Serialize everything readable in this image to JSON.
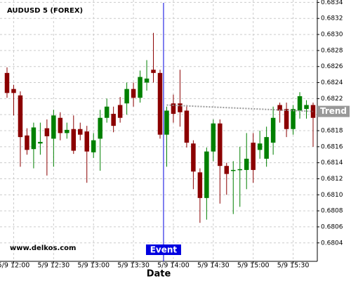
{
  "chart_data": {
    "type": "candlestick",
    "title": "AUDUSD 5 (FOREX)",
    "watermark": "www.delkos.com",
    "x_label": "Date",
    "categories": [
      null,
      "5/9 12:00",
      null,
      null,
      null,
      null,
      null,
      "5/9 12:30",
      null,
      null,
      null,
      null,
      null,
      "5/9 13:00",
      null,
      null,
      null,
      null,
      null,
      "5/9 13:30",
      null,
      null,
      null,
      null,
      null,
      "5/9 14:00",
      null,
      null,
      null,
      null,
      null,
      "5/9 14:30",
      null,
      null,
      null,
      null,
      null,
      "5/9 15:00",
      null,
      null,
      null,
      null,
      null,
      "5/9 15:30",
      null,
      null,
      null
    ],
    "open": [
      0.68252,
      0.68232,
      0.68224,
      0.68174,
      0.68157,
      0.68164,
      0.68183,
      0.6817,
      0.68196,
      0.68177,
      0.68182,
      0.68182,
      0.68179,
      0.68153,
      0.6817,
      0.68196,
      0.68201,
      0.68212,
      0.68214,
      0.68232,
      0.68221,
      0.6824,
      0.68256,
      0.68252,
      0.68175,
      0.68214,
      0.68214,
      0.68205,
      0.68164,
      0.68128,
      0.68096,
      0.68154,
      0.68189,
      0.68136,
      0.6813,
      0.68131,
      0.68131,
      0.68165,
      0.68156,
      0.68145,
      0.68165,
      0.68212,
      0.68207,
      0.68182,
      0.68205,
      0.68207,
      0.68212
    ],
    "high": [
      0.68259,
      0.68237,
      0.68229,
      0.68183,
      0.6819,
      0.6819,
      0.68194,
      0.68206,
      0.68203,
      0.6819,
      0.68199,
      0.6819,
      0.68186,
      0.68177,
      0.68206,
      0.6822,
      0.6821,
      0.68222,
      0.6824,
      0.6824,
      0.68255,
      0.68268,
      0.68302,
      0.68256,
      0.6821,
      0.68225,
      0.68256,
      0.68212,
      0.68168,
      0.68133,
      0.68159,
      0.68194,
      0.68194,
      0.6814,
      0.68142,
      0.6816,
      0.68177,
      0.68177,
      0.6818,
      0.68185,
      0.6821,
      0.68215,
      0.68215,
      0.68212,
      0.68228,
      0.68218,
      0.68215
    ],
    "low": [
      0.68221,
      0.68199,
      0.68135,
      0.6815,
      0.68133,
      0.6815,
      0.68124,
      0.68135,
      0.68168,
      0.6817,
      0.68151,
      0.68168,
      0.68115,
      0.68146,
      0.6813,
      0.6819,
      0.68178,
      0.6819,
      0.682,
      0.6821,
      0.68215,
      0.6823,
      0.6824,
      0.6817,
      0.68135,
      0.6819,
      0.68185,
      0.68159,
      0.68107,
      0.68065,
      0.68069,
      0.68142,
      0.68089,
      0.681,
      0.68076,
      0.68085,
      0.68107,
      0.68115,
      0.68145,
      0.68135,
      0.6815,
      0.6819,
      0.68172,
      0.68175,
      0.68195,
      0.68195,
      0.6816
    ],
    "close": [
      0.68227,
      0.68227,
      0.68172,
      0.68156,
      0.68184,
      0.68166,
      0.68173,
      0.68199,
      0.68177,
      0.68181,
      0.68155,
      0.68175,
      0.68154,
      0.68168,
      0.68196,
      0.6821,
      0.68186,
      0.68196,
      0.68232,
      0.68221,
      0.68247,
      0.68245,
      0.68252,
      0.68175,
      0.68205,
      0.68201,
      0.68203,
      0.68165,
      0.68129,
      0.68096,
      0.68154,
      0.68189,
      0.68136,
      0.68126,
      0.68131,
      0.68132,
      0.68145,
      0.68131,
      0.68164,
      0.68172,
      0.68196,
      0.68205,
      0.68182,
      0.68207,
      0.68223,
      0.68212,
      0.68196
    ],
    "up_color": "#008000",
    "down_color": "#8b0000",
    "ylim": [
      0.68017,
      0.68343
    ],
    "yticks": [
      0.6804,
      0.6806,
      0.6808,
      {
        "value": 0.681,
        "label": "0.6810"
      },
      0.6812,
      0.6814,
      0.6816,
      0.6818,
      {
        "value": 0.682,
        "label": "0.6820"
      },
      0.6822,
      0.6824,
      0.6826,
      0.6828,
      {
        "value": 0.683,
        "label": "0.6830"
      },
      0.6832,
      0.6834
    ],
    "grid": true,
    "event": {
      "label": "Event",
      "category": "5/9 14:00",
      "color": "#0000e0"
    },
    "trend": {
      "label": "Trend",
      "from": 0.68212,
      "to": 0.68204,
      "color": "#999999"
    }
  }
}
